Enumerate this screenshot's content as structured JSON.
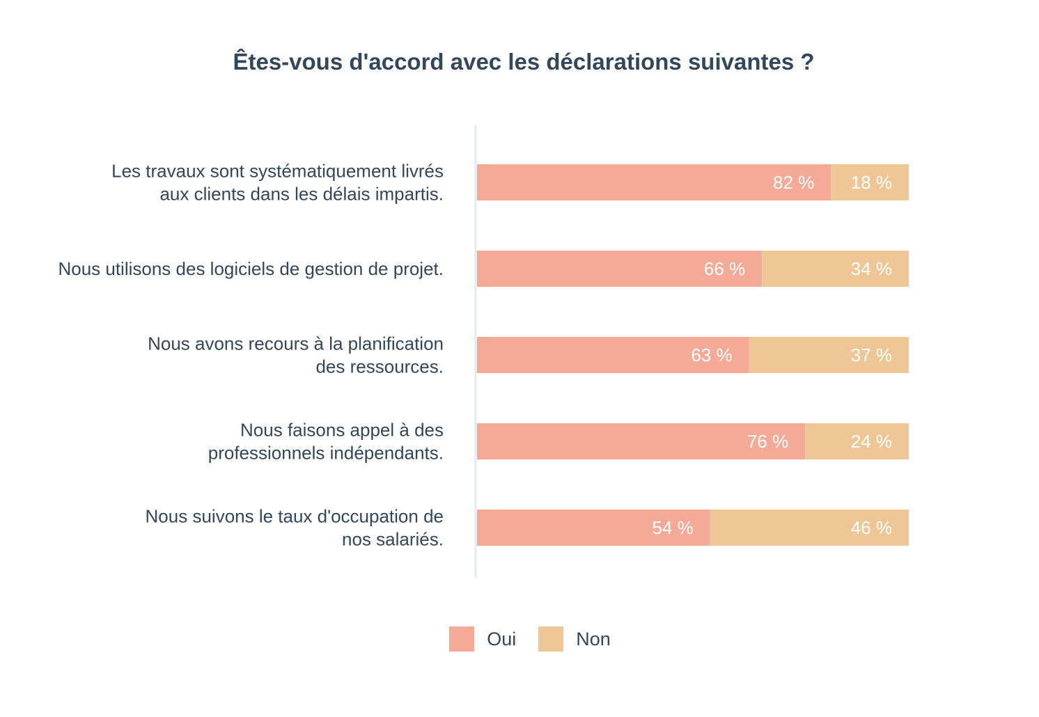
{
  "chart_data": {
    "type": "bar",
    "orientation": "horizontal",
    "stacked": true,
    "title": "Êtes-vous d'accord avec les déclarations suivantes ?",
    "categories": [
      [
        "Les travaux sont systématiquement livrés",
        "aux clients dans les délais impartis."
      ],
      [
        "Nous utilisons des logiciels de gestion de projet."
      ],
      [
        "Nous avons recours à la planification",
        "des ressources."
      ],
      [
        "Nous faisons appel à des",
        "professionnels indépendants."
      ],
      [
        "Nous suivons le taux d'occupation de",
        "nos salariés."
      ]
    ],
    "series": [
      {
        "name": "Oui",
        "color": "#f4aa96",
        "values": [
          82,
          66,
          63,
          76,
          54
        ],
        "labels": [
          "82 %",
          "66 %",
          "63 %",
          "76 %",
          "54 %"
        ]
      },
      {
        "name": "Non",
        "color": "#efc796",
        "values": [
          18,
          34,
          37,
          24,
          46
        ],
        "labels": [
          "18 %",
          "34 %",
          "37 %",
          "24 %",
          "46 %"
        ]
      }
    ],
    "xlim": [
      0,
      100
    ],
    "xlabel": "",
    "ylabel": "",
    "legend_position": "bottom-center",
    "grid": false
  }
}
